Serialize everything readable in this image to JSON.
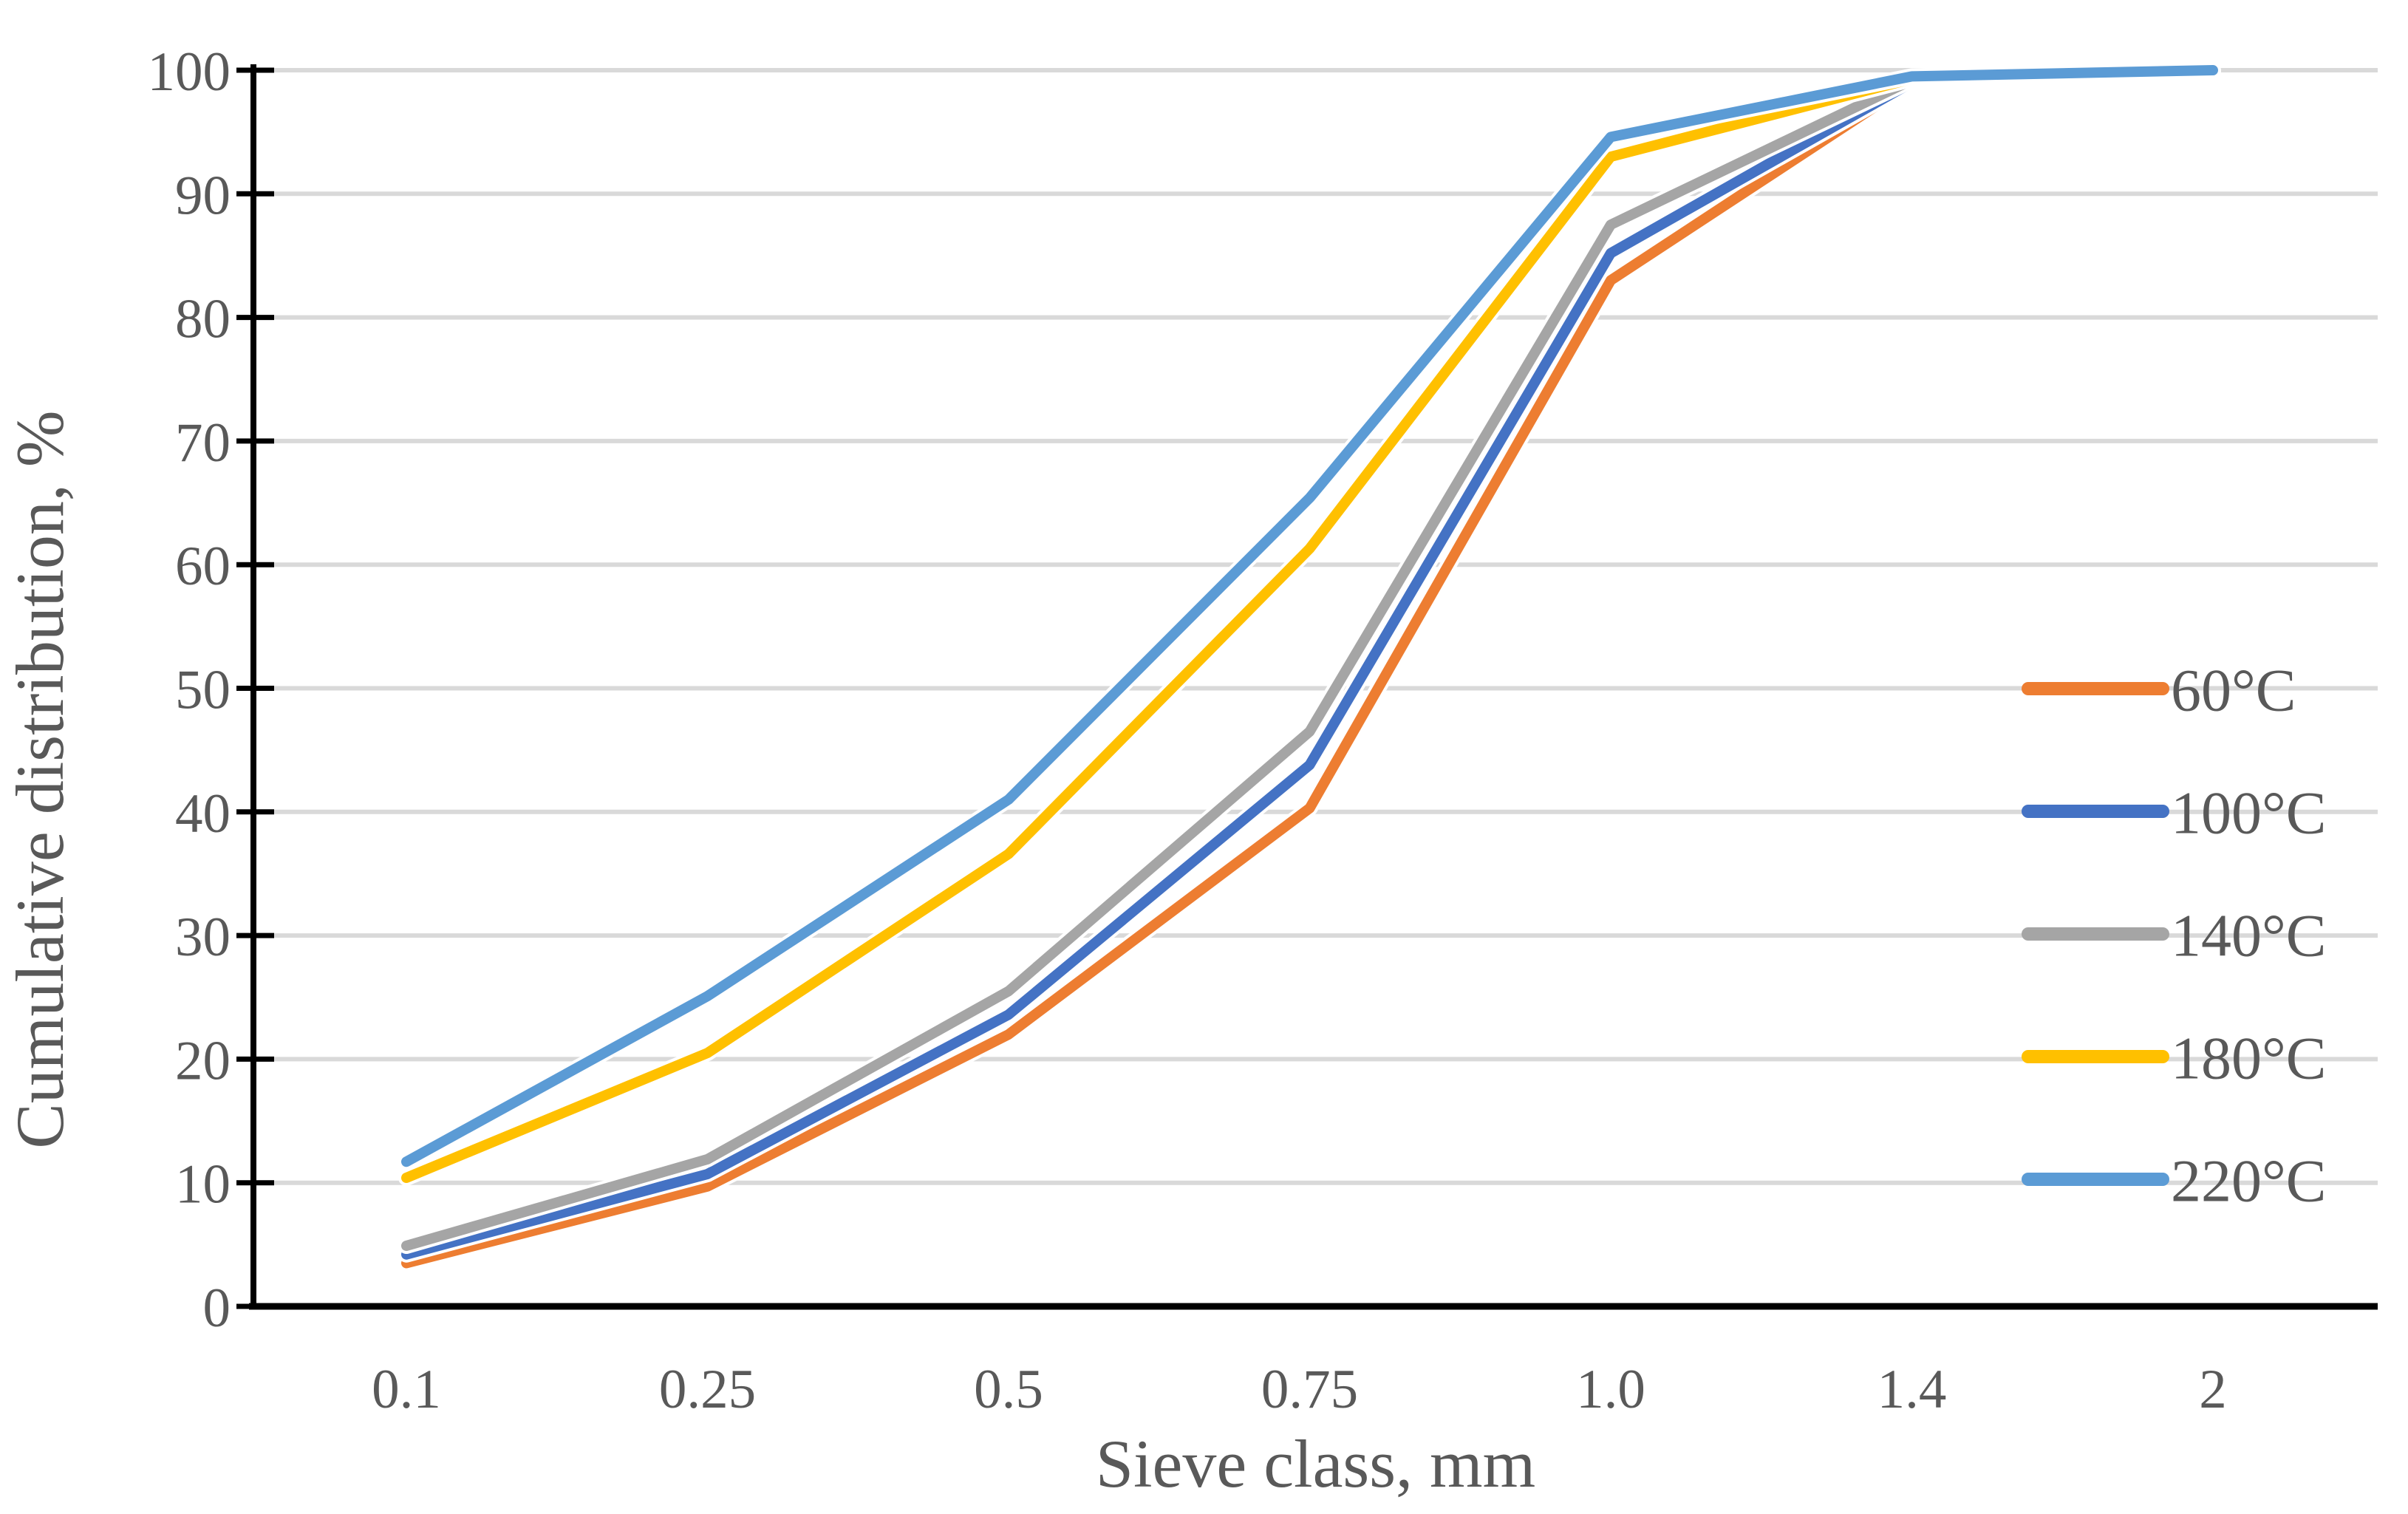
{
  "figure": {
    "background": "#FFFFFF"
  },
  "chart_data": {
    "type": "line",
    "title": "",
    "xlabel": "Sieve  class, mm",
    "ylabel": "Cumulative distribution, %",
    "categories": [
      "0.1",
      "0.25",
      "0.5",
      "0.75",
      "1.0",
      "1.4",
      "2"
    ],
    "y_ticks": [
      0,
      10,
      20,
      30,
      40,
      50,
      60,
      70,
      80,
      90,
      100
    ],
    "ylim": [
      0,
      100
    ],
    "grid": "horizontal",
    "legend_position": "right",
    "series": [
      {
        "name": "60°C",
        "color": "#ED7D31",
        "values": [
          3.5,
          9.7,
          22.0,
          40.3,
          83.0,
          99.0,
          99.8
        ]
      },
      {
        "name": "100°C",
        "color": "#4472C4",
        "values": [
          4.2,
          10.7,
          23.6,
          43.8,
          85.2,
          99.0,
          99.8
        ]
      },
      {
        "name": "140°C",
        "color": "#A5A5A5",
        "values": [
          4.9,
          11.9,
          25.5,
          46.5,
          87.5,
          99.2,
          99.9
        ]
      },
      {
        "name": "180°C",
        "color": "#FFC000",
        "values": [
          10.4,
          20.5,
          36.6,
          61.3,
          93.0,
          99.3,
          99.9
        ]
      },
      {
        "name": "220°C",
        "color": "#5B9BD5",
        "values": [
          11.7,
          25.1,
          41.0,
          65.4,
          94.6,
          99.5,
          100.0
        ]
      }
    ],
    "colors": {
      "gridline": "#D9D9D9",
      "axis": "#000000",
      "tick_label": "#595959",
      "axis_title": "#595959",
      "legend_label": "#595959"
    }
  }
}
